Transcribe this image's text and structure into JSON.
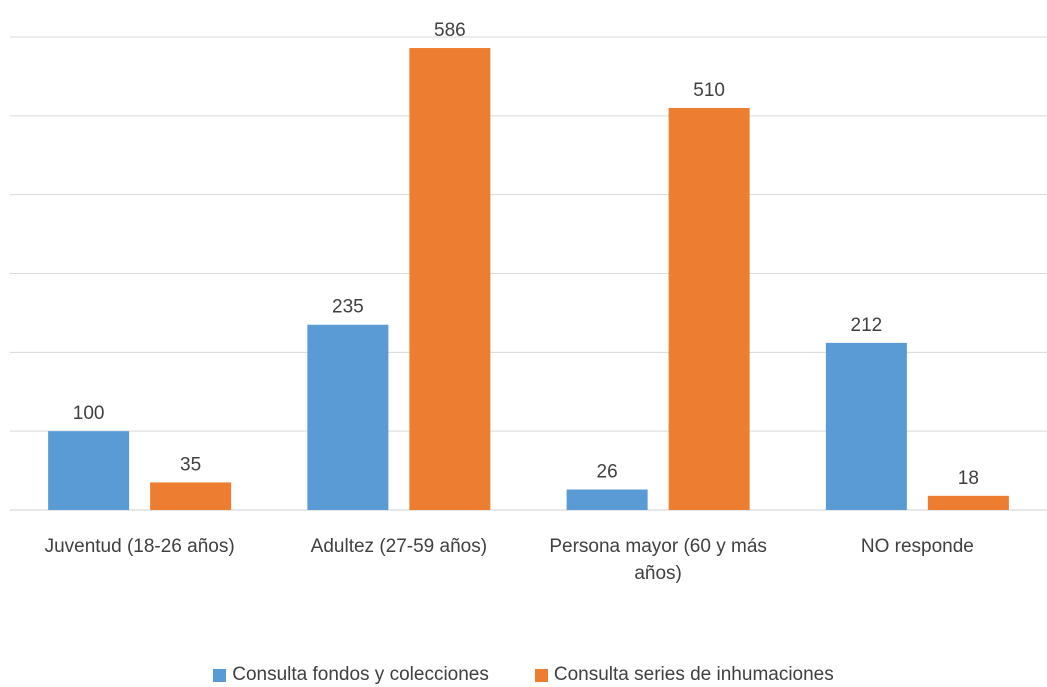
{
  "chart_data": {
    "type": "bar",
    "title": "",
    "xlabel": "",
    "ylabel": "",
    "categories": [
      [
        "Juventud (18-26 años)"
      ],
      [
        "Adultez (27-59 años)"
      ],
      [
        "Persona mayor (60 y más",
        "años)"
      ],
      [
        "NO responde"
      ]
    ],
    "series": [
      {
        "name": "Consulta fondos y colecciones",
        "color": "#5B9BD5",
        "values": [
          100,
          235,
          26,
          212
        ]
      },
      {
        "name": "Consulta series de inhumaciones",
        "color": "#ED7D31",
        "values": [
          35,
          586,
          510,
          18
        ]
      }
    ],
    "ylim": [
      0,
      600
    ],
    "gridlines": true,
    "y_axis_labels_visible": false,
    "data_labels": true,
    "legend_position": "bottom"
  }
}
